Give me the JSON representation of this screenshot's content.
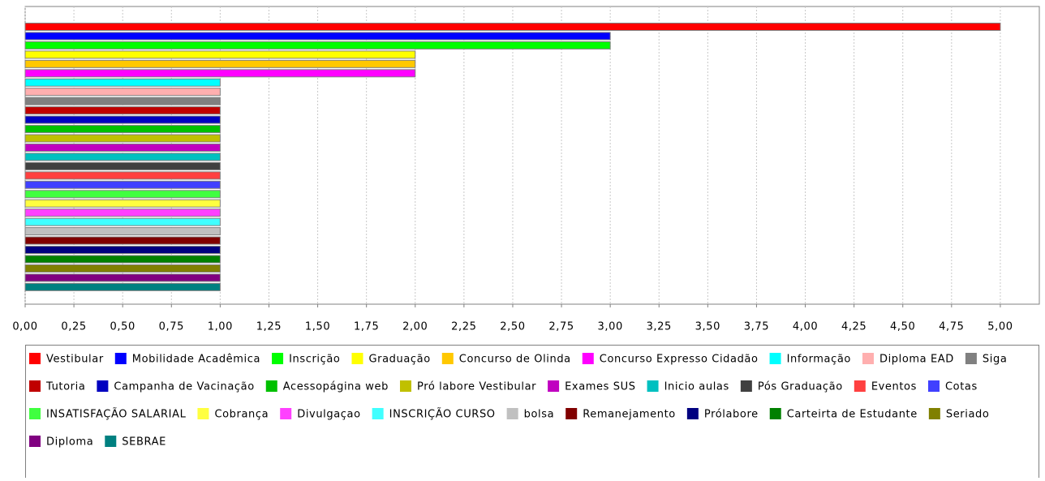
{
  "chart_data": {
    "type": "hbar",
    "series": [
      {
        "name": "Vestibular",
        "color": "#ff0000",
        "values": [
          5
        ]
      },
      {
        "name": "Mobilidade Acadêmica",
        "color": "#0000ff",
        "values": [
          3
        ]
      },
      {
        "name": "Inscrição",
        "color": "#00ff00",
        "values": [
          3
        ]
      },
      {
        "name": "Graduação",
        "color": "#ffff00",
        "values": [
          2
        ]
      },
      {
        "name": "Concurso de Olinda",
        "color": "#ffc800",
        "values": [
          2
        ]
      },
      {
        "name": "Concurso Expresso Cidadão",
        "color": "#ff00ff",
        "values": [
          2
        ]
      },
      {
        "name": "Informação",
        "color": "#00ffff",
        "values": [
          1
        ]
      },
      {
        "name": "Diploma EAD",
        "color": "#ffafaf",
        "values": [
          1
        ]
      },
      {
        "name": "Siga",
        "color": "#808080",
        "values": [
          1
        ]
      },
      {
        "name": "Tutoria",
        "color": "#c00000",
        "values": [
          1
        ]
      },
      {
        "name": "Campanha de Vacinação",
        "color": "#0000c0",
        "values": [
          1
        ]
      },
      {
        "name": "Acessopágina  web",
        "color": "#00c000",
        "values": [
          1
        ]
      },
      {
        "name": "Pró labore Vestibular",
        "color": "#c0c000",
        "values": [
          1
        ]
      },
      {
        "name": "Exames SUS",
        "color": "#c000c0",
        "values": [
          1
        ]
      },
      {
        "name": "Inicio aulas",
        "color": "#00c0c0",
        "values": [
          1
        ]
      },
      {
        "name": "Pós Graduação",
        "color": "#404040",
        "values": [
          1
        ]
      },
      {
        "name": "Eventos",
        "color": "#ff4040",
        "values": [
          1
        ]
      },
      {
        "name": "Cotas",
        "color": "#4040ff",
        "values": [
          1
        ]
      },
      {
        "name": "INSATISFAÇÃO SALARIAL",
        "color": "#40ff40",
        "values": [
          1
        ]
      },
      {
        "name": "Cobrança",
        "color": "#ffff40",
        "values": [
          1
        ]
      },
      {
        "name": "Divulgaçao",
        "color": "#ff40ff",
        "values": [
          1
        ]
      },
      {
        "name": "INSCRIÇÃO CURSO",
        "color": "#40ffff",
        "values": [
          1
        ]
      },
      {
        "name": "bolsa",
        "color": "#c0c0c0",
        "values": [
          1
        ]
      },
      {
        "name": "Remanejamento",
        "color": "#800000",
        "values": [
          1
        ]
      },
      {
        "name": "Prólabore",
        "color": "#000080",
        "values": [
          1
        ]
      },
      {
        "name": "Carteirta de Estudante",
        "color": "#008000",
        "values": [
          1
        ]
      },
      {
        "name": "Seriado",
        "color": "#808000",
        "values": [
          1
        ]
      },
      {
        "name": "Diploma",
        "color": "#800080",
        "values": [
          1
        ]
      },
      {
        "name": "SEBRAE",
        "color": "#008080",
        "values": [
          1
        ]
      }
    ],
    "xlim": [
      0,
      5.2
    ],
    "xticks": [
      {
        "value": 0,
        "label": "0,00"
      },
      {
        "value": 0.25,
        "label": "0,25"
      },
      {
        "value": 0.5,
        "label": "0,50"
      },
      {
        "value": 0.75,
        "label": "0,75"
      },
      {
        "value": 1,
        "label": "1,00"
      },
      {
        "value": 1.25,
        "label": "1,25"
      },
      {
        "value": 1.5,
        "label": "1,50"
      },
      {
        "value": 1.75,
        "label": "1,75"
      },
      {
        "value": 2,
        "label": "2,00"
      },
      {
        "value": 2.25,
        "label": "2,25"
      },
      {
        "value": 2.5,
        "label": "2,50"
      },
      {
        "value": 2.75,
        "label": "2,75"
      },
      {
        "value": 3,
        "label": "3,00"
      },
      {
        "value": 3.25,
        "label": "3,25"
      },
      {
        "value": 3.5,
        "label": "3,50"
      },
      {
        "value": 3.75,
        "label": "3,75"
      },
      {
        "value": 4,
        "label": "4,00"
      },
      {
        "value": 4.25,
        "label": "4,25"
      },
      {
        "value": 4.5,
        "label": "4,50"
      },
      {
        "value": 4.75,
        "label": "4,75"
      },
      {
        "value": 5,
        "label": "5,00"
      }
    ],
    "grid": true
  }
}
